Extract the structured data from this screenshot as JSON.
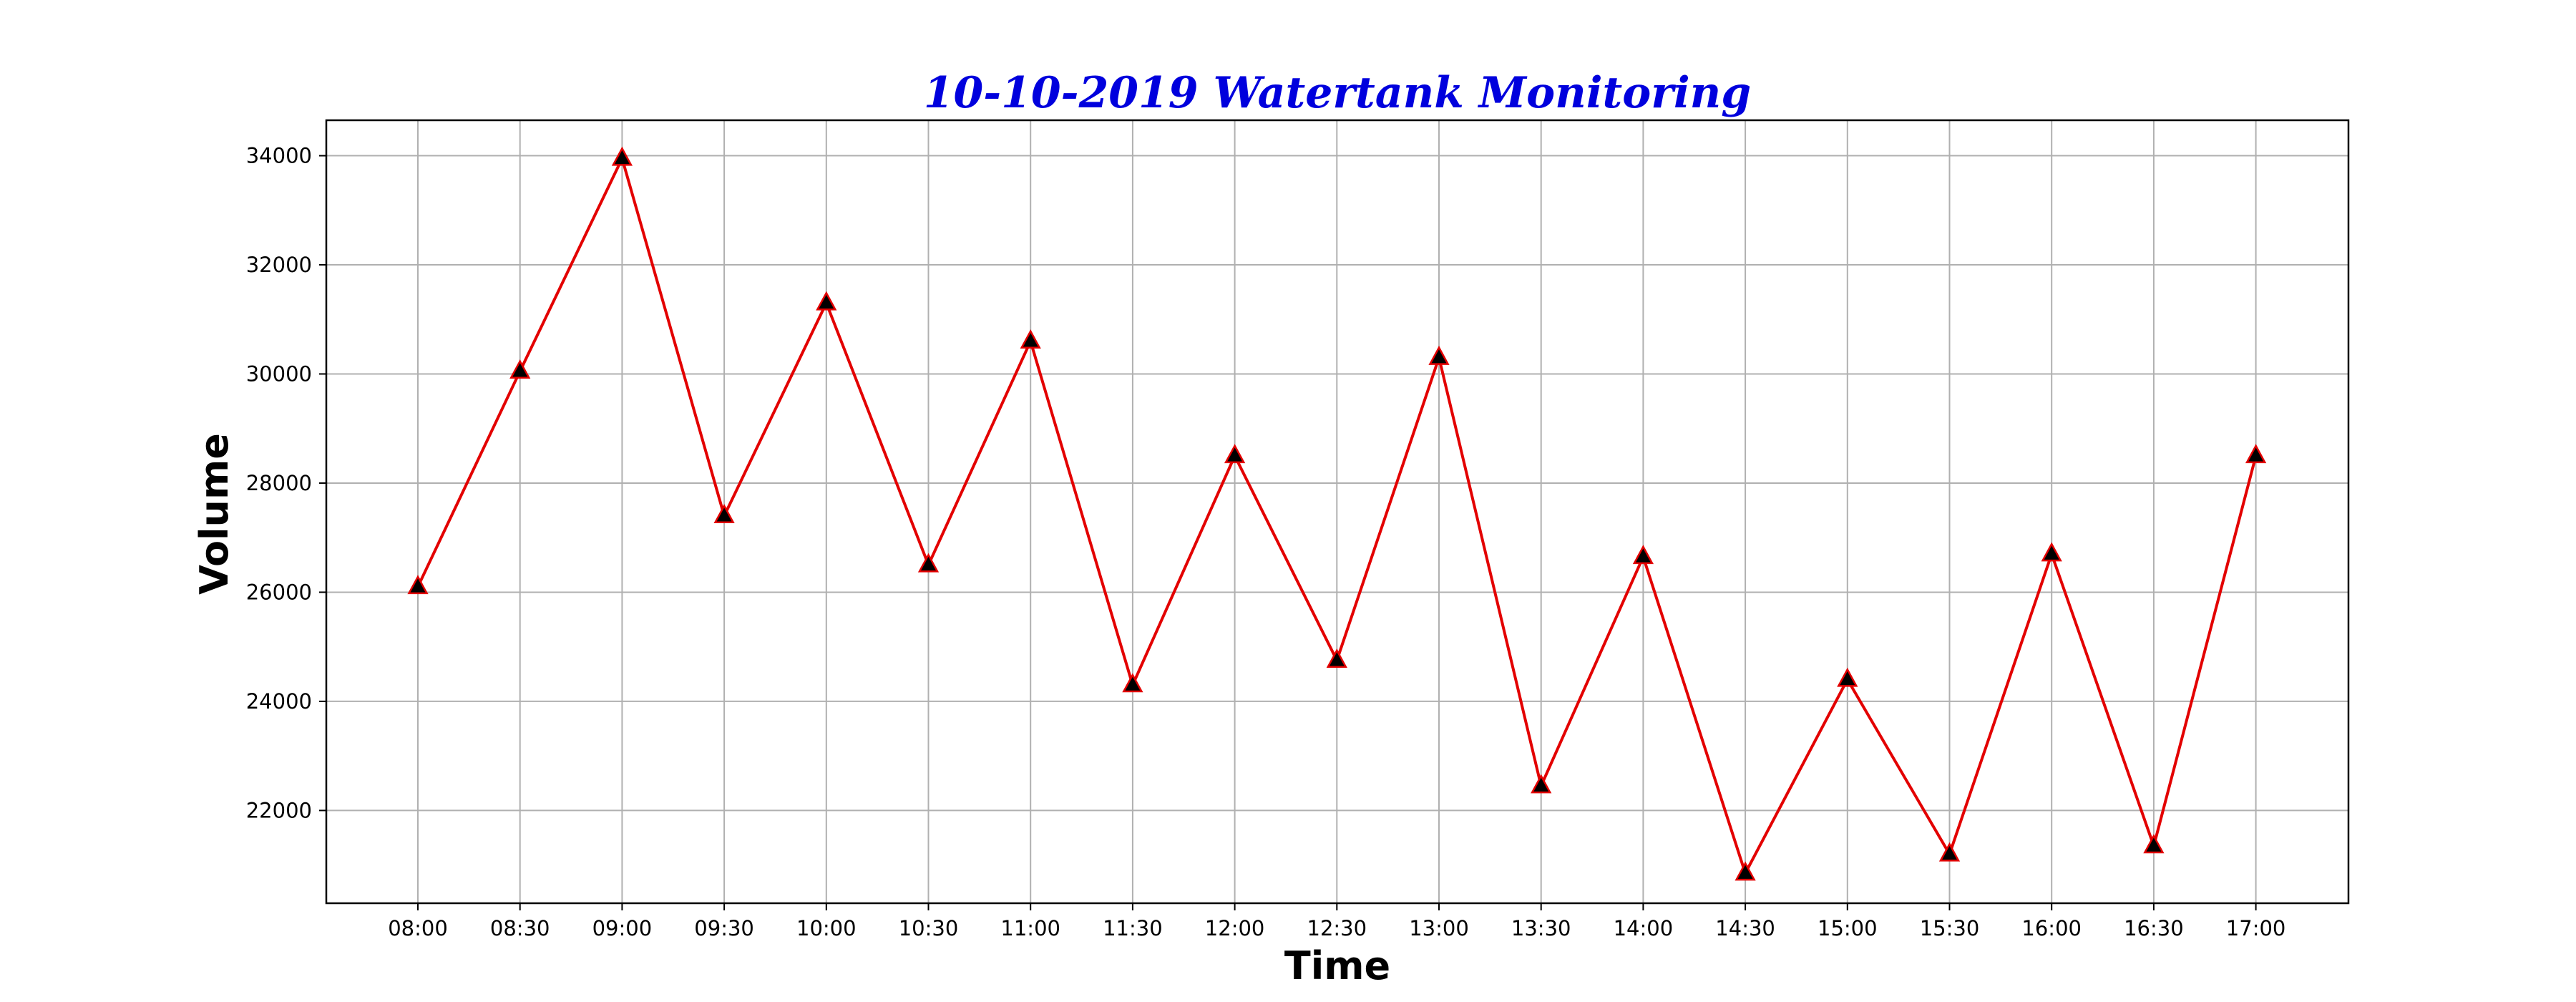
{
  "chart_data": {
    "type": "line",
    "title": "10-10-2019 Watertank Monitoring",
    "xlabel": "Time",
    "ylabel": "Volume",
    "x": [
      "08:00",
      "08:30",
      "09:00",
      "09:30",
      "10:00",
      "10:30",
      "11:00",
      "11:30",
      "12:00",
      "12:30",
      "13:00",
      "13:30",
      "14:00",
      "14:30",
      "15:00",
      "15:30",
      "16:00",
      "16:30",
      "17:00"
    ],
    "series": [
      {
        "values": [
          26100,
          30050,
          33950,
          27400,
          31300,
          26500,
          30600,
          24300,
          28500,
          24750,
          30300,
          22450,
          26650,
          20850,
          24400,
          21200,
          26700,
          21350,
          28500
        ]
      }
    ],
    "yticks": [
      22000,
      24000,
      26000,
      28000,
      30000,
      32000,
      34000
    ],
    "ylim": [
      20300,
      34650
    ],
    "grid": true,
    "marker": "triangle-up",
    "colors": {
      "line": "#e30000",
      "marker_fill": "#000000",
      "marker_edge": "#e30000",
      "title": "#0000dd"
    }
  }
}
